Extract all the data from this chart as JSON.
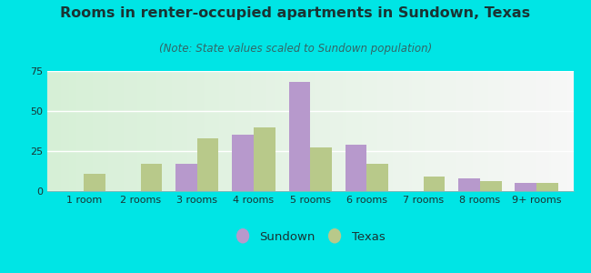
{
  "title": "Rooms in renter-occupied apartments in Sundown, Texas",
  "subtitle": "(Note: State values scaled to Sundown population)",
  "categories": [
    "1 room",
    "2 rooms",
    "3 rooms",
    "4 rooms",
    "5 rooms",
    "6 rooms",
    "7 rooms",
    "8 rooms",
    "9+ rooms"
  ],
  "sundown_values": [
    0,
    0,
    17,
    35,
    68,
    29,
    0,
    8,
    5
  ],
  "texas_values": [
    11,
    17,
    33,
    40,
    27,
    17,
    9,
    6,
    5
  ],
  "sundown_color": "#b799cc",
  "texas_color": "#b8c98a",
  "background_color": "#00e5e5",
  "ylim": [
    0,
    75
  ],
  "yticks": [
    0,
    25,
    50,
    75
  ],
  "bar_width": 0.38,
  "title_fontsize": 11.5,
  "subtitle_fontsize": 8.5,
  "tick_fontsize": 8,
  "legend_fontsize": 9.5,
  "title_color": "#1a3333",
  "subtitle_color": "#336666",
  "tick_color": "#1a3333"
}
